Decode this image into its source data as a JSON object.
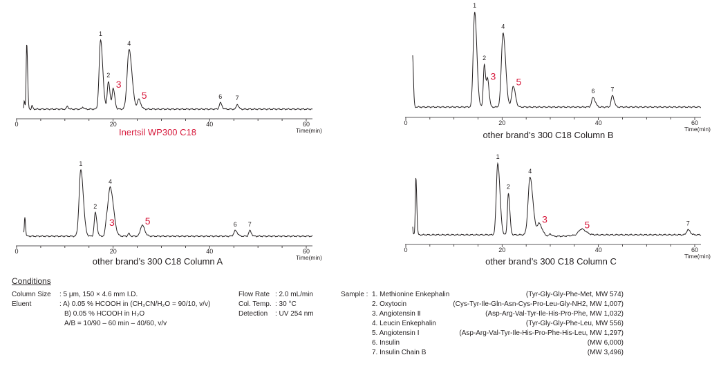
{
  "colors": {
    "highlight": "#d71a3c",
    "trace": "#231f20"
  },
  "chart_data": [
    {
      "type": "line",
      "caption": "Inertsil WP300 C18",
      "caption_highlight": true,
      "xlabel": "Time(min)",
      "xlim": [
        0,
        60
      ],
      "xticks": [
        0,
        20,
        40,
        60
      ],
      "grid": false,
      "peaks": [
        {
          "label": "",
          "x": 2.1,
          "h": 0.95,
          "w": 0.12
        },
        {
          "label": "",
          "x": 1.6,
          "h": 0.12,
          "w": 0.08
        },
        {
          "label": "",
          "x": 3.2,
          "h": 0.05,
          "w": 0.1
        },
        {
          "label": "",
          "x": 10.5,
          "h": 0.04,
          "w": 0.15
        },
        {
          "label": "",
          "x": 13.7,
          "h": 0.03,
          "w": 0.15
        },
        {
          "label": "1",
          "x": 17.4,
          "h": 1.0,
          "w": 0.3,
          "highlight": false
        },
        {
          "label": "2",
          "x": 19.0,
          "h": 0.4,
          "w": 0.22,
          "highlight": false
        },
        {
          "label": "3",
          "x": 20.0,
          "h": 0.3,
          "w": 0.22,
          "highlight": true
        },
        {
          "label": "4",
          "x": 23.3,
          "h": 0.86,
          "w": 0.4,
          "highlight": false
        },
        {
          "label": "5",
          "x": 25.3,
          "h": 0.14,
          "w": 0.28,
          "highlight": true
        },
        {
          "label": "6",
          "x": 42.2,
          "h": 0.09,
          "w": 0.22,
          "highlight": false
        },
        {
          "label": "7",
          "x": 45.7,
          "h": 0.07,
          "w": 0.18,
          "highlight": false
        }
      ]
    },
    {
      "type": "line",
      "caption": "other brand’s 300 C18 Column B",
      "caption_highlight": false,
      "xlabel": "Time(min)",
      "xlim": [
        0,
        60
      ],
      "xticks": [
        0,
        20,
        40,
        60
      ],
      "grid": false,
      "peaks": [
        {
          "label": "",
          "x": 1.4,
          "h": 0.55,
          "w": 0.12
        },
        {
          "label": "",
          "x": 1.0,
          "h": 0.08,
          "w": 0.08
        },
        {
          "label": "1",
          "x": 14.3,
          "h": 1.0,
          "w": 0.3,
          "highlight": false
        },
        {
          "label": "2",
          "x": 16.3,
          "h": 0.45,
          "w": 0.2,
          "highlight": false
        },
        {
          "label": "3",
          "x": 17.0,
          "h": 0.28,
          "w": 0.2,
          "highlight": true
        },
        {
          "label": "4",
          "x": 20.2,
          "h": 0.78,
          "w": 0.35,
          "highlight": false
        },
        {
          "label": "5",
          "x": 22.3,
          "h": 0.22,
          "w": 0.3,
          "highlight": true
        },
        {
          "label": "6",
          "x": 38.9,
          "h": 0.1,
          "w": 0.3,
          "highlight": false
        },
        {
          "label": "7",
          "x": 42.9,
          "h": 0.12,
          "w": 0.25,
          "highlight": false
        }
      ]
    },
    {
      "type": "line",
      "caption": "other brand’s 300 C18 Column A",
      "caption_highlight": false,
      "xlabel": "Time(min)",
      "xlim": [
        0,
        60
      ],
      "xticks": [
        0,
        20,
        40,
        60
      ],
      "grid": false,
      "peaks": [
        {
          "label": "",
          "x": 1.7,
          "h": 0.28,
          "w": 0.1
        },
        {
          "label": "",
          "x": 1.3,
          "h": 0.08,
          "w": 0.08
        },
        {
          "label": "1",
          "x": 13.3,
          "h": 0.96,
          "w": 0.35,
          "highlight": false
        },
        {
          "label": "2",
          "x": 16.3,
          "h": 0.34,
          "w": 0.22,
          "highlight": false
        },
        {
          "label": "3",
          "x": 18.6,
          "h": 0.14,
          "w": 0.22,
          "highlight": true
        },
        {
          "label": "4",
          "x": 19.4,
          "h": 0.7,
          "w": 0.45,
          "highlight": false
        },
        {
          "label": "",
          "x": 23.2,
          "h": 0.04,
          "w": 0.15
        },
        {
          "label": "5",
          "x": 26.0,
          "h": 0.16,
          "w": 0.35,
          "highlight": true
        },
        {
          "label": "6",
          "x": 45.3,
          "h": 0.08,
          "w": 0.3,
          "highlight": false
        },
        {
          "label": "7",
          "x": 48.3,
          "h": 0.08,
          "w": 0.22,
          "highlight": false
        }
      ]
    },
    {
      "type": "line",
      "caption": "other brand’s 300 C18 Column C",
      "caption_highlight": false,
      "xlabel": "Time(min)",
      "xlim": [
        0,
        60
      ],
      "xticks": [
        0,
        20,
        40,
        60
      ],
      "grid": false,
      "peaks": [
        {
          "label": "",
          "x": 1.2,
          "h": 0.38,
          "w": 0.1
        },
        {
          "label": "",
          "x": 2.1,
          "h": 0.8,
          "w": 0.12
        },
        {
          "label": "1",
          "x": 19.1,
          "h": 1.0,
          "w": 0.3,
          "highlight": false
        },
        {
          "label": "2",
          "x": 21.3,
          "h": 0.58,
          "w": 0.2,
          "highlight": false
        },
        {
          "label": "4",
          "x": 25.8,
          "h": 0.8,
          "w": 0.4,
          "highlight": false
        },
        {
          "label": "3",
          "x": 27.7,
          "h": 0.16,
          "w": 0.4,
          "highlight": true
        },
        {
          "label": "",
          "x": 30.0,
          "h": 0.03,
          "w": 0.2
        },
        {
          "label": "5",
          "x": 36.5,
          "h": 0.08,
          "w": 0.6,
          "highlight": true
        },
        {
          "label": "7",
          "x": 58.6,
          "h": 0.07,
          "w": 0.3,
          "highlight": false
        }
      ]
    }
  ],
  "conditions": {
    "title": "Conditions",
    "column_size_label": "Column Size",
    "column_size_value": ": 5 μm, 150 × 4.6 mm I.D.",
    "eluent_label": "Eluent",
    "eluent_a": ": A) 0.05 % HCOOH in (CH₃CN/H₂O = 90/10, v/v)",
    "eluent_b": "B) 0.05 % HCOOH in H₂O",
    "eluent_gradient": "A/B = 10/90 – 60 min – 40/60, v/v",
    "flow_rate_label": "Flow Rate",
    "flow_rate_value": ": 2.0 mL/min",
    "col_temp_label": "Col. Temp.",
    "col_temp_value": ": 30 °C",
    "detection_label": "Detection",
    "detection_value": ": UV 254 nm",
    "sample_label": "Sample :",
    "samples": [
      {
        "name": "1. Methionine Enkephalin",
        "meta": "(Tyr-Gly-Gly-Phe-Met, MW 574)"
      },
      {
        "name": "2. Oxytocin",
        "meta": "(Cys-Tyr-Ile-Gln-Asn-Cys-Pro-Leu-Gly-NH2, MW 1,007)"
      },
      {
        "name": "3. Angiotensin Ⅱ",
        "meta": "(Asp-Arg-Val-Tyr-Ile-His-Pro-Phe, MW 1,032)"
      },
      {
        "name": "4. Leucin Enkephalin",
        "meta": "(Tyr-Gly-Gly-Phe-Leu, MW 556)"
      },
      {
        "name": "5. Angiotensin Ⅰ",
        "meta": "(Asp-Arg-Val-Tyr-Ile-His-Pro-Phe-His-Leu, MW 1,297)"
      },
      {
        "name": "6. Insulin",
        "meta": "(MW 6,000)"
      },
      {
        "name": "7. Insulin Chain B",
        "meta": "(MW 3,496)"
      }
    ]
  }
}
